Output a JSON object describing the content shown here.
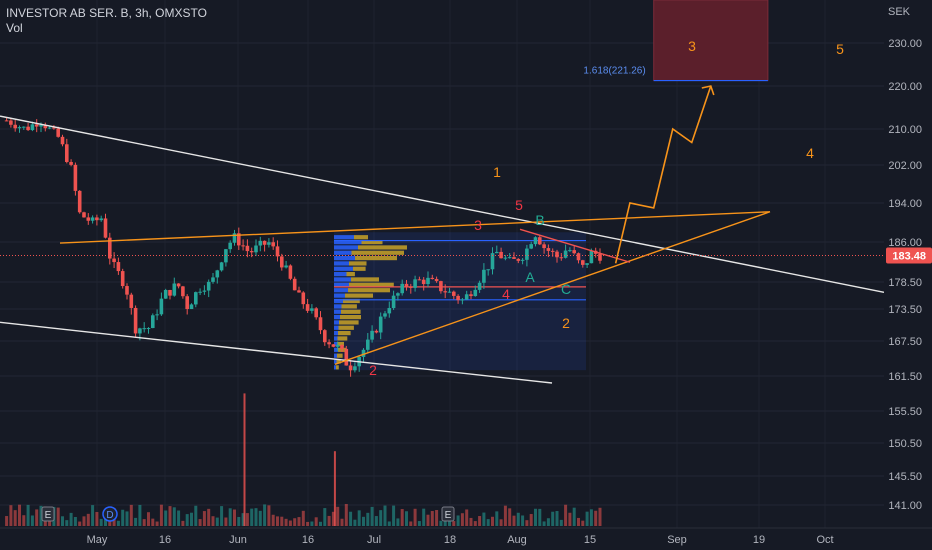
{
  "header": {
    "symbol_line": "INVESTOR AB SER. B, 3h, OMXSTO",
    "volume_label": "Vol"
  },
  "axis": {
    "currency": "SEK",
    "current_price": "183.48",
    "fib_label": "1.618(221.26)"
  },
  "colors": {
    "background": "#161a25",
    "up": "#26a69a",
    "down": "#ef5350",
    "orange": "#f7931a",
    "trendline": "#ffffff",
    "fib": "#2962ff",
    "wave_red": "#f23645",
    "wave_green": "#22ab94",
    "target_box": "#5b1f2b"
  },
  "chart_data": {
    "type": "candlestick",
    "title": "INVESTOR AB SER. B, 3h, OMXSTO",
    "y_axis_ticks": [
      230.0,
      220.0,
      210.0,
      202.0,
      194.0,
      186.0,
      178.5,
      173.5,
      167.5,
      161.5,
      155.5,
      150.5,
      145.5,
      141.0
    ],
    "ylim": [
      138.5,
      235.5
    ],
    "x_axis_labels": [
      "May",
      "16",
      "Jun",
      "16",
      "Jul",
      "18",
      "Aug",
      "15",
      "Sep",
      "19",
      "Oct"
    ],
    "close_path": [
      {
        "date": "Apr 12",
        "close": 212
      },
      {
        "date": "Apr 16",
        "close": 210
      },
      {
        "date": "Apr 19",
        "close": 212
      },
      {
        "date": "Apr 23",
        "close": 208
      },
      {
        "date": "Apr 26",
        "close": 200
      },
      {
        "date": "Apr 27",
        "close": 192
      },
      {
        "date": "Apr 30",
        "close": 190
      },
      {
        "date": "May 2",
        "close": 191
      },
      {
        "date": "May 4",
        "close": 182
      },
      {
        "date": "May 7",
        "close": 178
      },
      {
        "date": "May 9",
        "close": 170
      },
      {
        "date": "May 12",
        "close": 170
      },
      {
        "date": "May 15",
        "close": 176
      },
      {
        "date": "May 18",
        "close": 178
      },
      {
        "date": "May 20",
        "close": 174
      },
      {
        "date": "May 23",
        "close": 178
      },
      {
        "date": "May 25",
        "close": 178
      },
      {
        "date": "May 28",
        "close": 185
      },
      {
        "date": "May 30",
        "close": 187
      },
      {
        "date": "Jun 2",
        "close": 184
      },
      {
        "date": "Jun 6",
        "close": 186
      },
      {
        "date": "Jun 9",
        "close": 182
      },
      {
        "date": "Jun 12",
        "close": 176
      },
      {
        "date": "Jun 15",
        "close": 173
      },
      {
        "date": "Jun 18",
        "close": 168
      },
      {
        "date": "Jun 21",
        "close": 166
      },
      {
        "date": "Jun 23",
        "close": 163
      },
      {
        "date": "Jun 27",
        "close": 167
      },
      {
        "date": "Jul 1",
        "close": 174
      },
      {
        "date": "Jul 5",
        "close": 178
      },
      {
        "date": "Jul 9",
        "close": 179
      },
      {
        "date": "Jul 13",
        "close": 177
      },
      {
        "date": "Jul 17",
        "close": 175
      },
      {
        "date": "Jul 21",
        "close": 180
      },
      {
        "date": "Jul 24",
        "close": 184
      },
      {
        "date": "Jul 27",
        "close": 182
      },
      {
        "date": "Jul 30",
        "close": 184
      },
      {
        "date": "Aug 1",
        "close": 188
      },
      {
        "date": "Aug 3",
        "close": 185
      },
      {
        "date": "Aug 6",
        "close": 183
      },
      {
        "date": "Aug 8",
        "close": 185
      },
      {
        "date": "Aug 11",
        "close": 181
      },
      {
        "date": "Aug 13",
        "close": 184
      },
      {
        "date": "Aug 15",
        "close": 183.48
      }
    ],
    "volume_spikes": [
      {
        "date": "Jun 1",
        "relative": 0.78
      },
      {
        "date": "Jun 20",
        "relative": 0.44
      }
    ],
    "drawings": {
      "target_box": {
        "from": "Aug 26",
        "to": "Sep 19",
        "top": 235.5,
        "bottom": 221.26
      },
      "fib_extension": {
        "level": 1.618,
        "price": 221.26
      },
      "projection_path": [
        {
          "date": "Aug 18",
          "price": 182
        },
        {
          "date": "Aug 21",
          "price": 194
        },
        {
          "date": "Aug 26",
          "price": 193
        },
        {
          "date": "Aug 30",
          "price": 210
        },
        {
          "date": "Sep 3",
          "price": 207
        },
        {
          "date": "Sep 7",
          "price": 220
        }
      ],
      "price_line": 183.48
    },
    "wave_labels": {
      "orange": [
        "1",
        "2",
        "3",
        "4",
        "5"
      ],
      "red": [
        "2",
        "3",
        "4",
        "5"
      ],
      "green": [
        "A",
        "B",
        "C"
      ]
    },
    "markers": [
      "E",
      "D",
      "E"
    ]
  }
}
